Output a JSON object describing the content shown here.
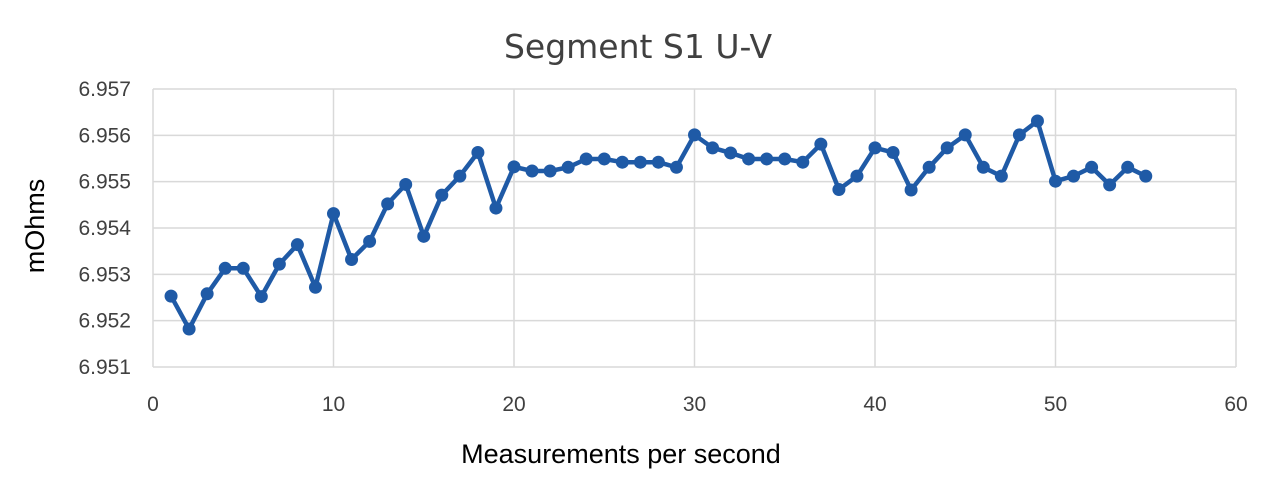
{
  "chart_data": {
    "type": "line",
    "title": "Segment S1 U-V",
    "xlabel": "Measurements per second",
    "ylabel": "mOhms",
    "xlim": [
      0,
      60
    ],
    "ylim": [
      6.951,
      6.957
    ],
    "x_ticks": [
      0,
      10,
      20,
      30,
      40,
      50,
      60
    ],
    "y_ticks": [
      "6.951",
      "6.952",
      "6.953",
      "6.954",
      "6.955",
      "6.956",
      "6.957"
    ],
    "grid": true,
    "line_color": "#1f5aa6",
    "series": [
      {
        "x": [
          1,
          2,
          3,
          4,
          5,
          6,
          7,
          8,
          9,
          10,
          11,
          12,
          13,
          14,
          15,
          16,
          17,
          18,
          19,
          20,
          21,
          22,
          23,
          24,
          25,
          26,
          27,
          28,
          29,
          30,
          31,
          32,
          33,
          34,
          35,
          36,
          37,
          38,
          39,
          40,
          41,
          42,
          43,
          44,
          45,
          46,
          47,
          48,
          49,
          50,
          51,
          52,
          53,
          54,
          55
        ],
        "values": [
          6.95253,
          6.95182,
          6.95258,
          6.95313,
          6.95313,
          6.95252,
          6.95322,
          6.95364,
          6.95272,
          6.95431,
          6.95332,
          6.95371,
          6.95452,
          6.95494,
          6.95382,
          6.95471,
          6.95512,
          6.95563,
          6.95443,
          6.95532,
          6.95523,
          6.95523,
          6.95531,
          6.95549,
          6.95549,
          6.95542,
          6.95542,
          6.95542,
          6.95531,
          6.95601,
          6.95573,
          6.95562,
          6.95549,
          6.95549,
          6.95549,
          6.95542,
          6.95581,
          6.95483,
          6.95512,
          6.95573,
          6.95563,
          6.95482,
          6.95531,
          6.95573,
          6.95601,
          6.95531,
          6.95512,
          6.95601,
          6.95631,
          6.95501,
          6.95512,
          6.95531,
          6.95493,
          6.95531,
          6.95512
        ]
      }
    ]
  }
}
